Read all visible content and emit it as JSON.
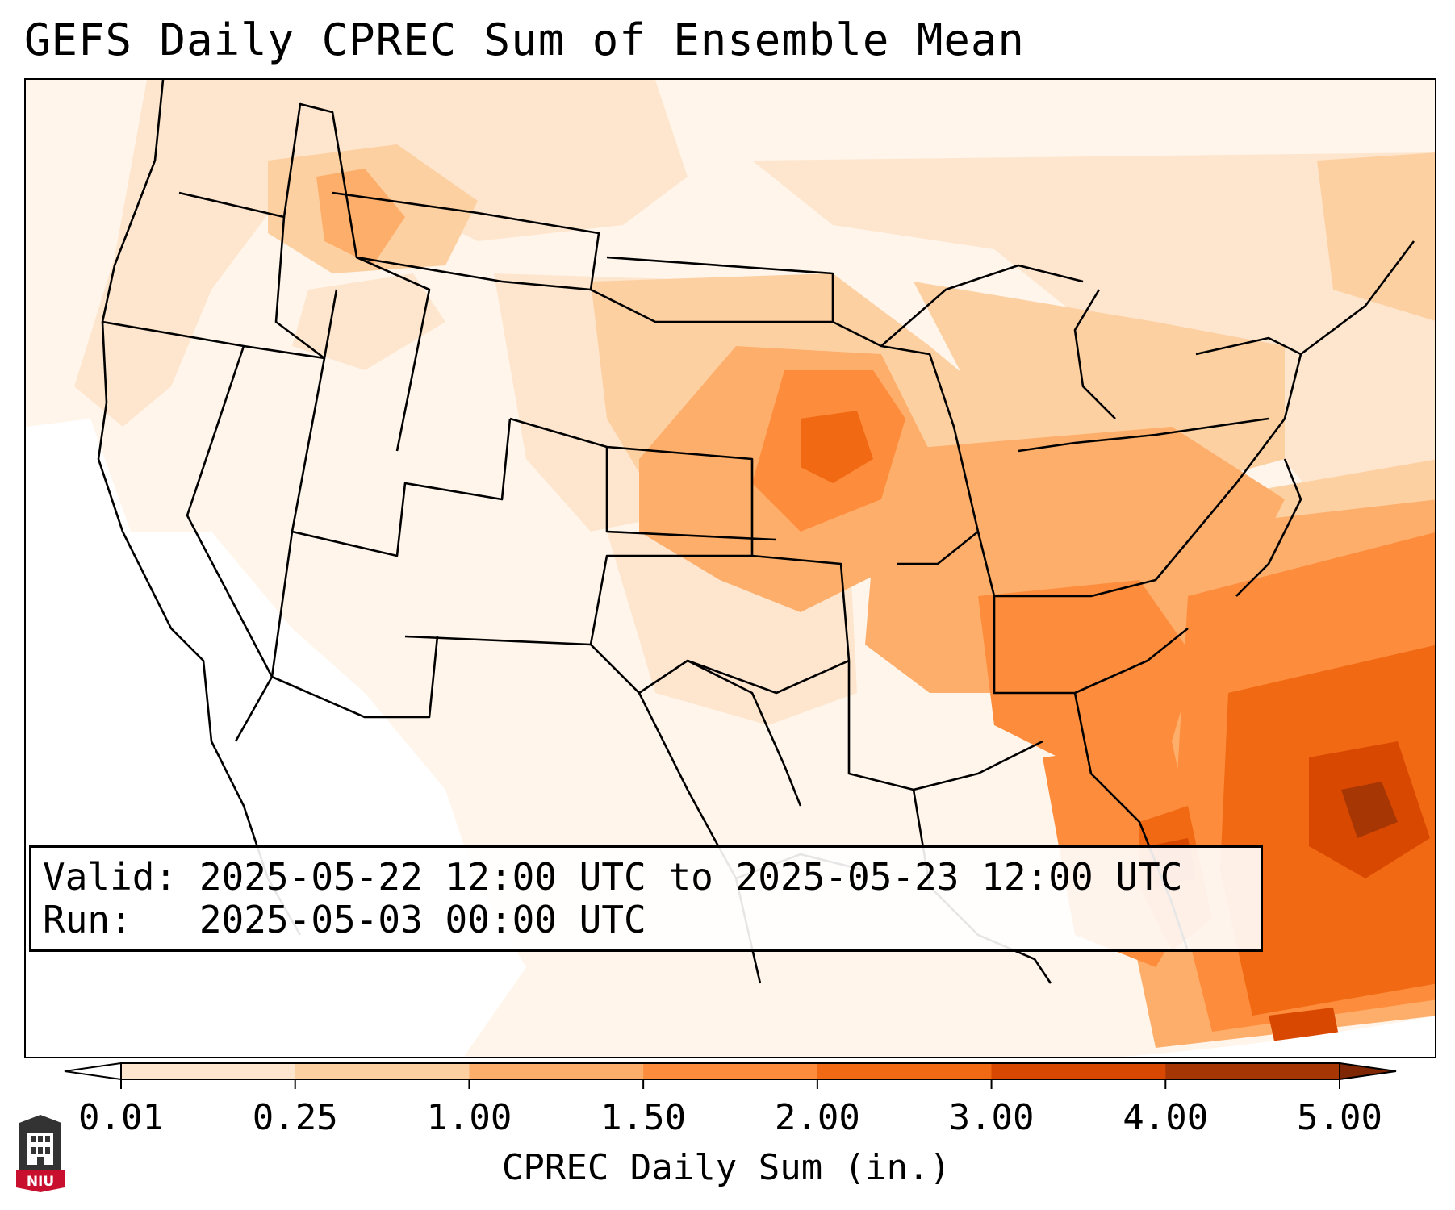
{
  "title": "GEFS Daily CPREC Sum of Ensemble Mean",
  "info": {
    "valid_line": "Valid: 2025-05-22 12:00 UTC to 2025-05-23 12:00 UTC",
    "run_line": "Run:   2025-05-03 00:00 UTC"
  },
  "colorbar": {
    "label": "CPREC Daily Sum (in.)",
    "ticks": [
      "0.01",
      "0.25",
      "1.00",
      "1.50",
      "2.00",
      "3.00",
      "4.00",
      "5.00"
    ],
    "colors": [
      "#fff5eb",
      "#fee6ce",
      "#fdd0a2",
      "#fdae6b",
      "#fd8d3c",
      "#f16913",
      "#d94801",
      "#a63603",
      "#7f2704"
    ],
    "under_color": "#ffffff",
    "over_color": "#7f2704"
  },
  "logo": {
    "text": "NIU",
    "colors": {
      "badge": "#333333",
      "banner": "#c8102e"
    }
  }
}
